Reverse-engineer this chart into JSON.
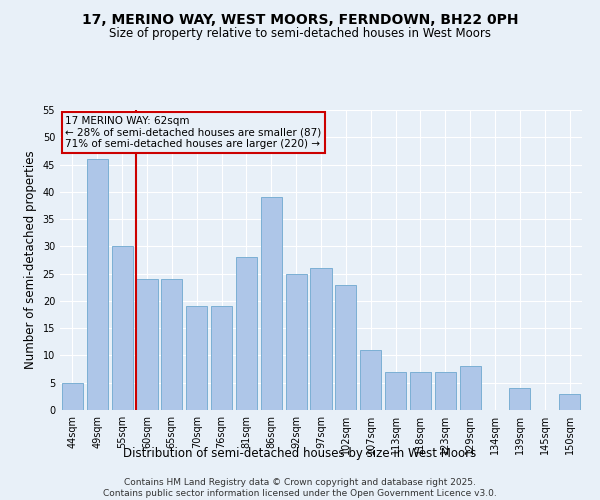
{
  "title": "17, MERINO WAY, WEST MOORS, FERNDOWN, BH22 0PH",
  "subtitle": "Size of property relative to semi-detached houses in West Moors",
  "xlabel": "Distribution of semi-detached houses by size in West Moors",
  "ylabel": "Number of semi-detached properties",
  "categories": [
    "44sqm",
    "49sqm",
    "55sqm",
    "60sqm",
    "65sqm",
    "70sqm",
    "76sqm",
    "81sqm",
    "86sqm",
    "92sqm",
    "97sqm",
    "102sqm",
    "107sqm",
    "113sqm",
    "118sqm",
    "123sqm",
    "129sqm",
    "134sqm",
    "139sqm",
    "145sqm",
    "150sqm"
  ],
  "values": [
    5,
    46,
    30,
    24,
    24,
    19,
    19,
    28,
    39,
    25,
    26,
    23,
    11,
    7,
    7,
    7,
    8,
    0,
    4,
    0,
    3
  ],
  "bar_color": "#aec6e8",
  "bar_edge_color": "#7bafd4",
  "background_color": "#e8f0f8",
  "grid_color": "#ffffff",
  "vline_index": 3,
  "property_label": "17 MERINO WAY: 62sqm",
  "smaller_pct": "28%",
  "smaller_count": 87,
  "larger_pct": "71%",
  "larger_count": 220,
  "annotation_box_color": "#cc0000",
  "vline_color": "#cc0000",
  "ylim": [
    0,
    55
  ],
  "yticks": [
    0,
    5,
    10,
    15,
    20,
    25,
    30,
    35,
    40,
    45,
    50,
    55
  ],
  "footer": "Contains HM Land Registry data © Crown copyright and database right 2025.\nContains public sector information licensed under the Open Government Licence v3.0.",
  "title_fontsize": 10,
  "subtitle_fontsize": 8.5,
  "axis_label_fontsize": 8.5,
  "tick_fontsize": 7,
  "footer_fontsize": 6.5,
  "annotation_fontsize": 7.5
}
